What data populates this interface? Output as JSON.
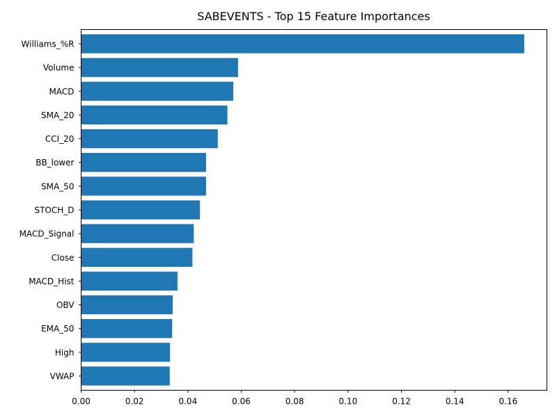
{
  "chart_data": {
    "type": "bar",
    "orientation": "horizontal",
    "title": "SABEVENTS - Top 15 Feature Importances",
    "xlabel": "",
    "ylabel": "",
    "categories": [
      "Williams_%R",
      "Volume",
      "MACD",
      "SMA_20",
      "CCI_20",
      "BB_lower",
      "SMA_50",
      "STOCH_D",
      "MACD_Signal",
      "Close",
      "MACD_Hist",
      "OBV",
      "EMA_50",
      "High",
      "VWAP"
    ],
    "values": [
      0.166,
      0.0588,
      0.057,
      0.0548,
      0.0512,
      0.0468,
      0.0468,
      0.0445,
      0.0422,
      0.0417,
      0.0361,
      0.0343,
      0.0341,
      0.0333,
      0.0332
    ],
    "xlim": [
      0,
      0.1745
    ],
    "xticks": [
      "0.00",
      "0.02",
      "0.04",
      "0.06",
      "0.08",
      "0.10",
      "0.12",
      "0.14",
      "0.16"
    ],
    "grid": false,
    "bar_color": "#1f77b4"
  }
}
